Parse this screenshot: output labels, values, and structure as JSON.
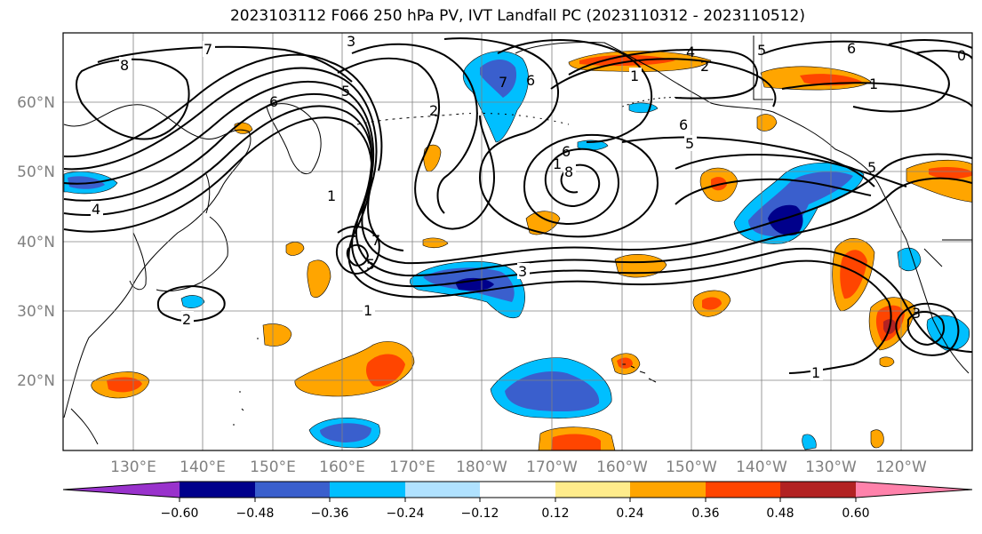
{
  "title": "2023103112 F066 250 hPa PV, IVT Landfall PC (2023110312 - 2023110512)",
  "map": {
    "lon_ticks": [
      "130°E",
      "140°E",
      "150°E",
      "160°E",
      "170°E",
      "180°W",
      "170°W",
      "160°W",
      "150°W",
      "140°W",
      "130°W",
      "120°W"
    ],
    "lat_ticks": [
      "60°N",
      "50°N",
      "40°N",
      "30°N",
      "20°N"
    ],
    "gridlines": true,
    "contour_labels": [
      "8",
      "7",
      "6",
      "5",
      "4",
      "3",
      "2",
      "1",
      "5",
      "2",
      "7",
      "6",
      "1",
      "4",
      "2",
      "1",
      "5",
      "6",
      "7",
      "8",
      "6",
      "3",
      "5",
      "6",
      "1",
      "5",
      "1",
      "3",
      "1",
      "0"
    ]
  },
  "colorbar": {
    "ticks": [
      "−0.60",
      "−0.48",
      "−0.36",
      "−0.24",
      "−0.12",
      "0.12",
      "0.24",
      "0.36",
      "0.48",
      "0.60"
    ],
    "colors": [
      "#9932cc",
      "#00008b",
      "#3a5fcd",
      "#00bfff",
      "#b0e2ff",
      "#ffffff",
      "#ffec8b",
      "#ffa500",
      "#ff4500",
      "#b22222",
      "#ff82ab"
    ],
    "extend": "both"
  }
}
